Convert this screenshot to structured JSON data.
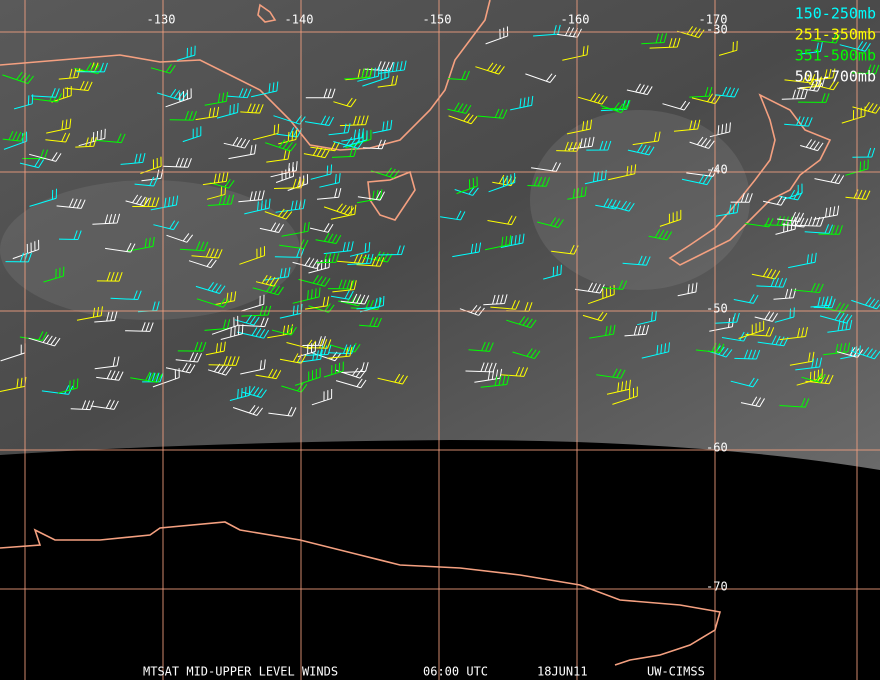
{
  "grid": {
    "lon_labels": [
      "-130",
      "-140",
      "-150",
      "-160",
      "-170"
    ],
    "lat_labels": [
      "-30",
      "-40",
      "-50",
      "-60",
      "-70"
    ]
  },
  "legend": [
    {
      "label": "150-250mb",
      "color": "#00ffff"
    },
    {
      "label": "251-350mb",
      "color": "#ffff00"
    },
    {
      "label": "351-500mb",
      "color": "#00ff00"
    },
    {
      "label": "501-700mb",
      "color": "#ffffff"
    }
  ],
  "footer": {
    "title": "MTSAT MID-UPPER LEVEL WINDS",
    "time": "06:00 UTC",
    "date": "18JUN11",
    "source": "UW-CIMSS"
  }
}
